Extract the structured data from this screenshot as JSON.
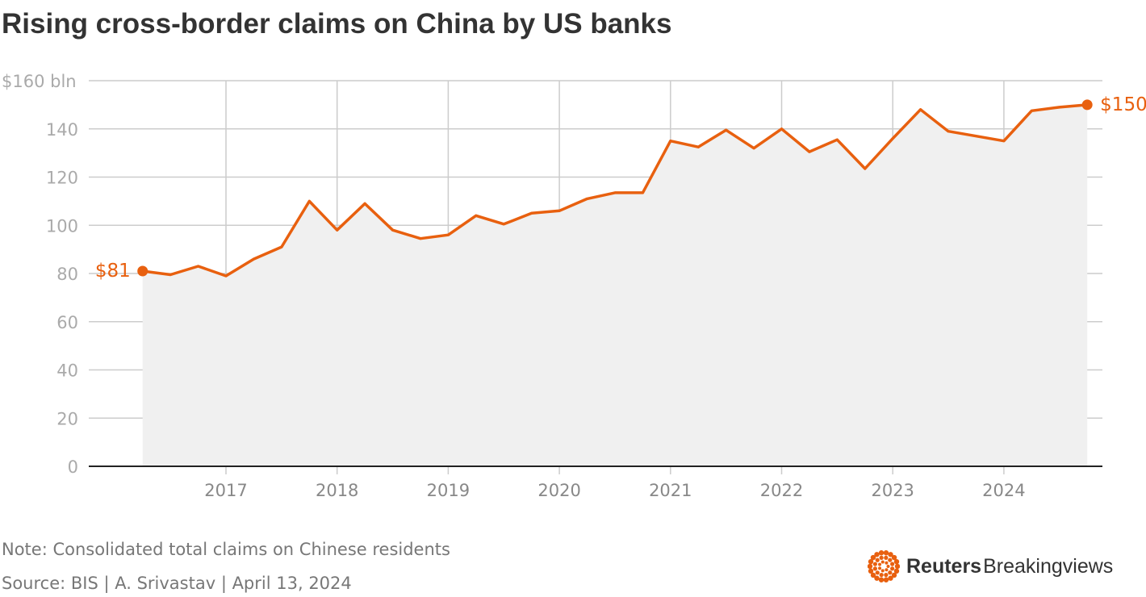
{
  "title": "Rising cross-border claims on China by US banks",
  "note": "Note: Consolidated total claims on Chinese residents",
  "source": "Source: BIS | A. Srivastav | April 13, 2024",
  "brand": {
    "name_bold": "Reuters",
    "name_regular": "Breakingviews",
    "logo_icon": "reuters-dots-logo-icon"
  },
  "colors": {
    "line": "#e8600f",
    "area": "#f0f0f0",
    "grid": "#cccccc",
    "axis": "#222222"
  },
  "chart_data": {
    "type": "area",
    "y_unit_label": "$160 bln",
    "ylim": [
      0,
      160
    ],
    "yticks": [
      0,
      20,
      40,
      60,
      80,
      100,
      120,
      140,
      160
    ],
    "ytick_labels": [
      "0",
      "20",
      "40",
      "60",
      "80",
      "100",
      "120",
      "140",
      "$160 bln"
    ],
    "xticks": [
      "2017",
      "2018",
      "2019",
      "2020",
      "2021",
      "2022",
      "2023",
      "2024"
    ],
    "grid": true,
    "series": [
      {
        "x": [
          "2016-04",
          "2016-07",
          "2016-10",
          "2017-01",
          "2017-04",
          "2017-07",
          "2017-10",
          "2018-01",
          "2018-04",
          "2018-07",
          "2018-10",
          "2019-01",
          "2019-04",
          "2019-07",
          "2019-10",
          "2020-01",
          "2020-04",
          "2020-07",
          "2020-10",
          "2021-01",
          "2021-04",
          "2021-07",
          "2021-10",
          "2022-01",
          "2022-04",
          "2022-07",
          "2022-10",
          "2023-01",
          "2023-04",
          "2023-07",
          "2023-10",
          "2024-01",
          "2024-04",
          "2024-07",
          "2024-10"
        ],
        "values": [
          81,
          79.5,
          83,
          79,
          86,
          91,
          110,
          98,
          109,
          98,
          94.5,
          96,
          104,
          100.5,
          105,
          106,
          111,
          113.5,
          113.5,
          135,
          132.5,
          139.5,
          132,
          140,
          130.5,
          135.5,
          123.5,
          136,
          148,
          139,
          137,
          135,
          147.5,
          149,
          150
        ]
      }
    ],
    "annotations": {
      "start": "$81",
      "end": "$150"
    }
  }
}
